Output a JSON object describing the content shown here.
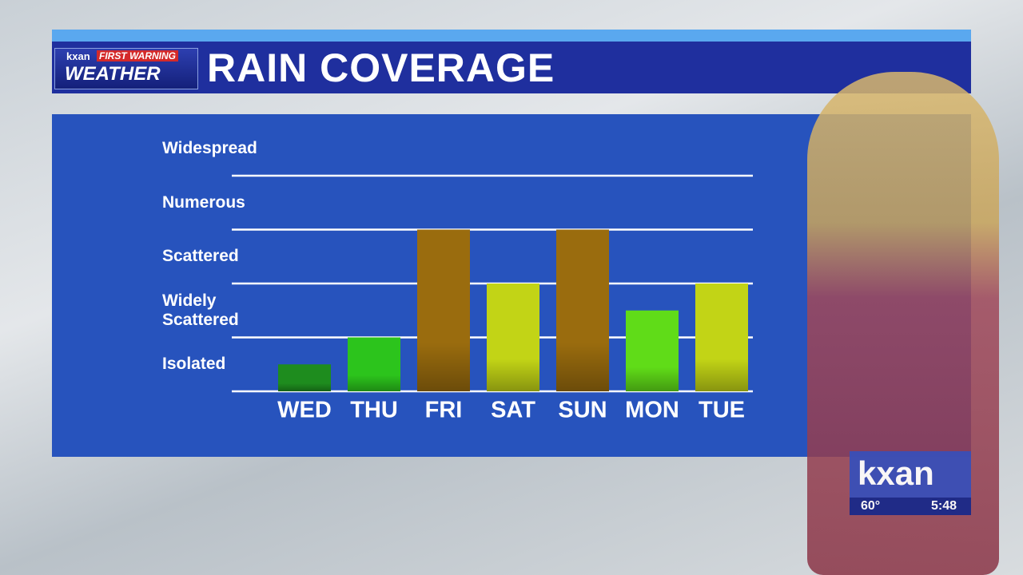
{
  "chart_data": {
    "type": "bar",
    "title": "RAIN COVERAGE",
    "categories": [
      "WED",
      "THU",
      "FRI",
      "SAT",
      "SUN",
      "MON",
      "TUE"
    ],
    "values": [
      0.5,
      1,
      3,
      2,
      3,
      1.5,
      2
    ],
    "colors": [
      "#1e8c1e",
      "#2cc41c",
      "#9a6c0e",
      "#c2d416",
      "#9a6c0e",
      "#60dc18",
      "#c2d416"
    ],
    "ylim": [
      0,
      5
    ],
    "yticks": [
      {
        "value": 0.5,
        "label": "Isolated"
      },
      {
        "value": 1.5,
        "label": "Widely Scattered"
      },
      {
        "value": 2.5,
        "label": "Scattered"
      },
      {
        "value": 3.5,
        "label": "Numerous"
      },
      {
        "value": 4.5,
        "label": "Widespread"
      }
    ],
    "grid_values": [
      0,
      1,
      2,
      3,
      4
    ],
    "grid": true
  },
  "branding": {
    "station": "kxan",
    "banner": "FIRST WARNING",
    "segment": "WEATHER",
    "bug_station": "kxan",
    "temperature": "60°",
    "time": "5:48"
  }
}
